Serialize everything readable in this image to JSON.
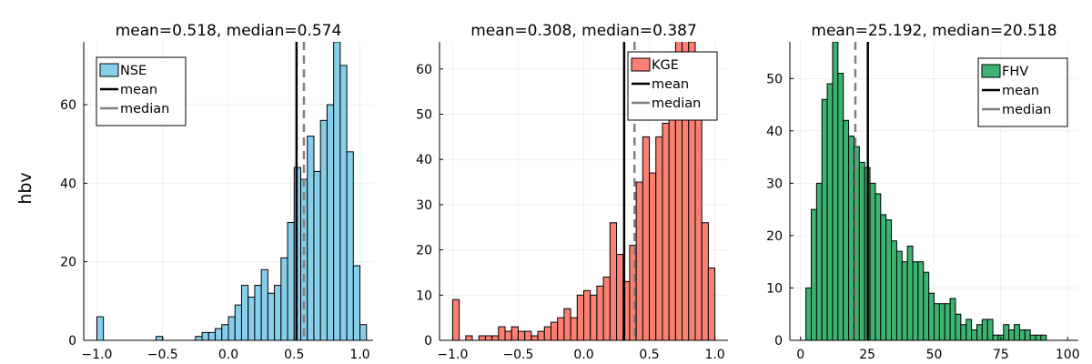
{
  "figure": {
    "ylabel": "hbv"
  },
  "chart_data": [
    {
      "type": "bar",
      "title": "mean=0.518, median=0.574",
      "xlabel": "",
      "ylabel": "hbv",
      "color": "#87ceeb",
      "legend": [
        "NSE",
        "mean",
        "median"
      ],
      "legend_position": "top-left",
      "mean": 0.518,
      "median": 0.574,
      "xlim": [
        -1.1,
        1.1
      ],
      "ylim": [
        0,
        76
      ],
      "xticks": [
        -1.0,
        -0.5,
        0.0,
        0.5,
        1.0
      ],
      "xtick_labels": [
        "−1.0",
        "−0.5",
        "0.0",
        "0.5",
        "1.0"
      ],
      "yticks": [
        0,
        20,
        40,
        60
      ],
      "ytick_labels": [
        "0",
        "20",
        "40",
        "60"
      ],
      "grid": true,
      "bin_start": -1.0,
      "bin_width": 0.05,
      "values": [
        6,
        0,
        0,
        0,
        0,
        0,
        0,
        0,
        0,
        1,
        0,
        0,
        0,
        0,
        0,
        1,
        2,
        2,
        3,
        4,
        6,
        9,
        14,
        11,
        14,
        18,
        12,
        14,
        21,
        30,
        44,
        41,
        52,
        43,
        56,
        60,
        76,
        70,
        48,
        19,
        4
      ]
    },
    {
      "type": "bar",
      "title": "mean=0.308, median=0.387",
      "xlabel": "",
      "ylabel": "",
      "color": "#fa8072",
      "legend": [
        "KGE",
        "mean",
        "median"
      ],
      "legend_position": "top-right",
      "mean": 0.308,
      "median": 0.387,
      "xlim": [
        -1.1,
        1.1
      ],
      "ylim": [
        0,
        66
      ],
      "xticks": [
        -1.0,
        -0.5,
        0.0,
        0.5,
        1.0
      ],
      "xtick_labels": [
        "−1.0",
        "−0.5",
        "0.0",
        "0.5",
        "1.0"
      ],
      "yticks": [
        0,
        10,
        20,
        30,
        40,
        50,
        60
      ],
      "ytick_labels": [
        "0",
        "10",
        "20",
        "30",
        "40",
        "50",
        "60"
      ],
      "grid": true,
      "bin_start": -1.0,
      "bin_width": 0.05,
      "values": [
        9,
        0,
        1,
        0,
        1,
        1,
        1,
        3,
        2,
        3,
        2,
        2,
        1,
        2,
        3,
        4,
        5,
        7,
        5,
        10,
        11,
        10,
        12,
        14,
        26,
        19,
        13,
        21,
        35,
        45,
        37,
        45,
        48,
        56,
        68,
        75,
        66,
        50,
        26,
        16
      ]
    },
    {
      "type": "bar",
      "title": "mean=25.192, median=20.518",
      "xlabel": "",
      "ylabel": "",
      "color": "#3cb371",
      "legend": [
        "FHV",
        "mean",
        "median"
      ],
      "legend_position": "top-right",
      "mean": 25.192,
      "median": 20.518,
      "xlim": [
        -4,
        104
      ],
      "ylim": [
        0,
        57
      ],
      "xticks": [
        0,
        25,
        50,
        75,
        100
      ],
      "xtick_labels": [
        "0",
        "25",
        "50",
        "75",
        "100"
      ],
      "yticks": [
        0,
        10,
        20,
        30,
        40,
        50
      ],
      "ytick_labels": [
        "0",
        "10",
        "20",
        "30",
        "40",
        "50"
      ],
      "grid": true,
      "bin_start": 2,
      "bin_width": 2,
      "values": [
        10,
        25,
        30,
        46,
        49,
        57,
        51,
        42,
        39,
        37,
        34,
        33,
        30,
        28,
        24,
        23,
        19,
        17,
        15,
        18,
        15,
        15,
        13,
        9,
        7,
        7,
        7,
        8,
        5,
        3,
        4,
        2,
        3,
        4,
        4,
        1,
        1,
        3,
        2,
        3,
        2,
        2,
        1,
        1,
        1
      ]
    }
  ]
}
